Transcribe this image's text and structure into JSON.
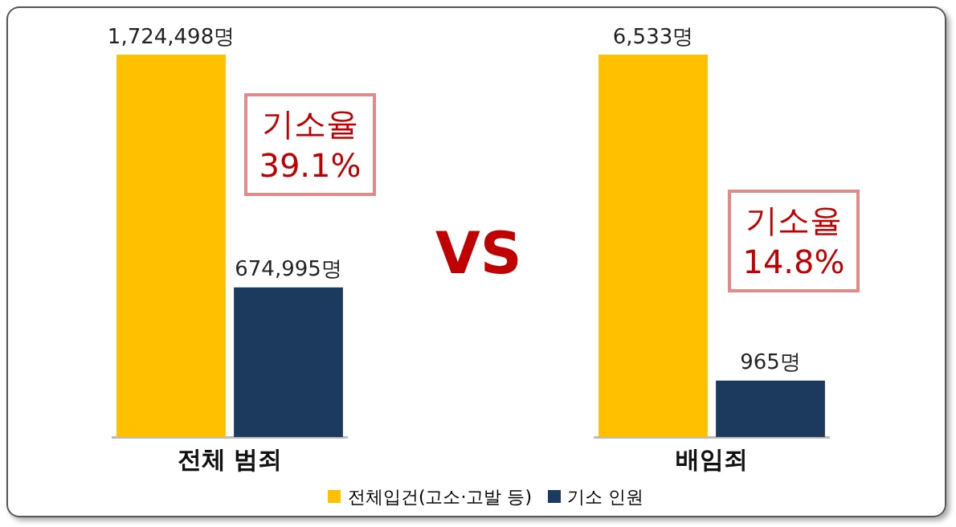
{
  "chart_data": [
    {
      "type": "bar",
      "categories": [
        null,
        null
      ],
      "xlabel": "전체 범죄",
      "stacked": true,
      "tick_labels": false,
      "legend": "bottom",
      "series": [
        {
          "name": "전체입건(고소·고발 등)",
          "color": "#ffc000",
          "values": [
            1724498,
            null
          ],
          "value_labels": [
            "1,724,498명",
            null
          ]
        },
        {
          "name": "기소 인원",
          "color": "#1b3a5e",
          "values": [
            null,
            674995
          ],
          "value_labels": [
            null,
            "674,995명"
          ]
        }
      ],
      "annotations": [
        "기소율 39.1%",
        "VS"
      ]
    },
    {
      "type": "bar",
      "categories": [
        null,
        null
      ],
      "xlabel": "배임죄",
      "stacked": true,
      "tick_labels": false,
      "series": [
        {
          "color": "#ffc000",
          "values": [
            6533,
            null
          ],
          "value_labels": [
            "6,533명",
            null
          ]
        },
        {
          "color": "#1b3a5e",
          "values": [
            null,
            965
          ],
          "value_labels": [
            null,
            "965명"
          ]
        }
      ],
      "annotations": [
        "기소율 14.8%"
      ]
    }
  ]
}
